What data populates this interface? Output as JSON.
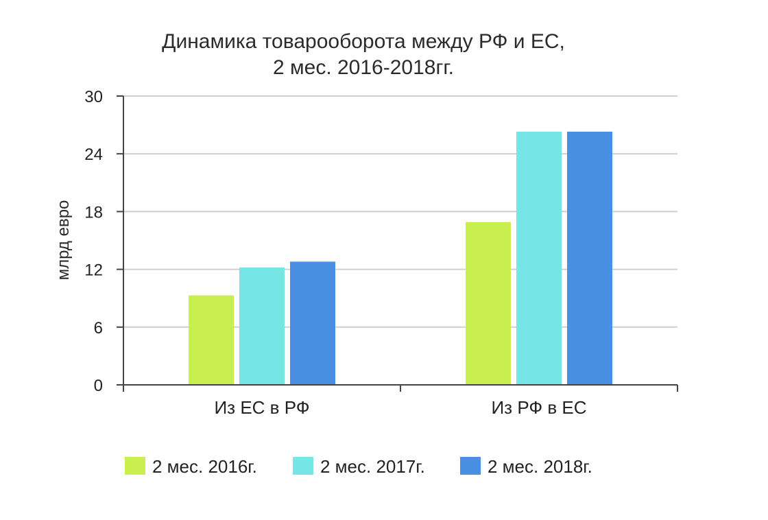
{
  "chart_data": {
    "type": "bar",
    "title_lines": [
      "Динамика товарооборота между РФ и ЕС,",
      "2 мес. 2016-2018гг."
    ],
    "xlabel": "",
    "ylabel": "млрд евро",
    "ylim": [
      0,
      30
    ],
    "yticks": [
      "0",
      "6",
      "12",
      "18",
      "24",
      "30"
    ],
    "grid": true,
    "legend_position": "bottom",
    "categories": [
      "Из ЕС в РФ",
      "Из РФ в ЕС"
    ],
    "series": [
      {
        "name": "2 мес. 2016г.",
        "color": "#c8ef4d",
        "values": [
          9.3,
          16.9
        ]
      },
      {
        "name": "2 мес. 2017г.",
        "color": "#75e5e5",
        "values": [
          12.2,
          26.3
        ]
      },
      {
        "name": "2 мес. 2018г.",
        "color": "#4a90e2",
        "values": [
          12.8,
          26.3
        ]
      }
    ]
  }
}
